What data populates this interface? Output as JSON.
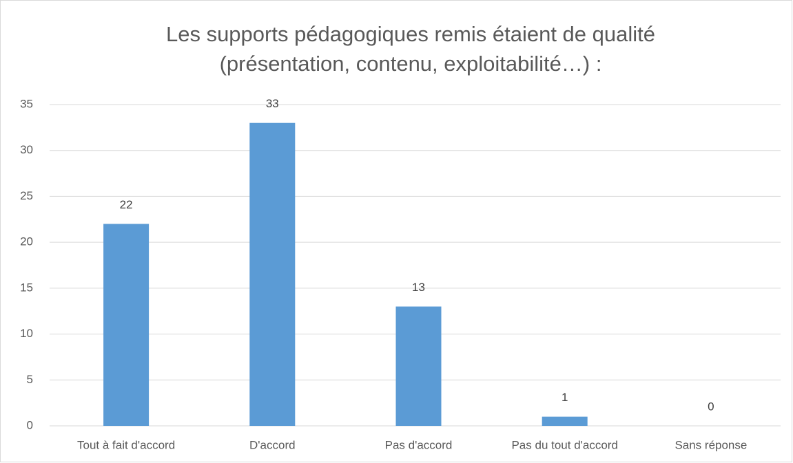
{
  "chart_data": {
    "type": "bar",
    "title": [
      "Les supports pédagogiques remis étaient de qualité",
      "(présentation, contenu, exploitabilité…) :"
    ],
    "categories": [
      "Tout à fait d'accord",
      "D'accord",
      "Pas d'accord",
      "Pas du tout d'accord",
      "Sans réponse"
    ],
    "values": [
      22,
      33,
      13,
      1,
      0
    ],
    "color": "#5b9bd5",
    "ylim": [
      0,
      35
    ],
    "yticks": [
      0,
      5,
      10,
      15,
      20,
      25,
      30,
      35
    ],
    "grid": true
  }
}
